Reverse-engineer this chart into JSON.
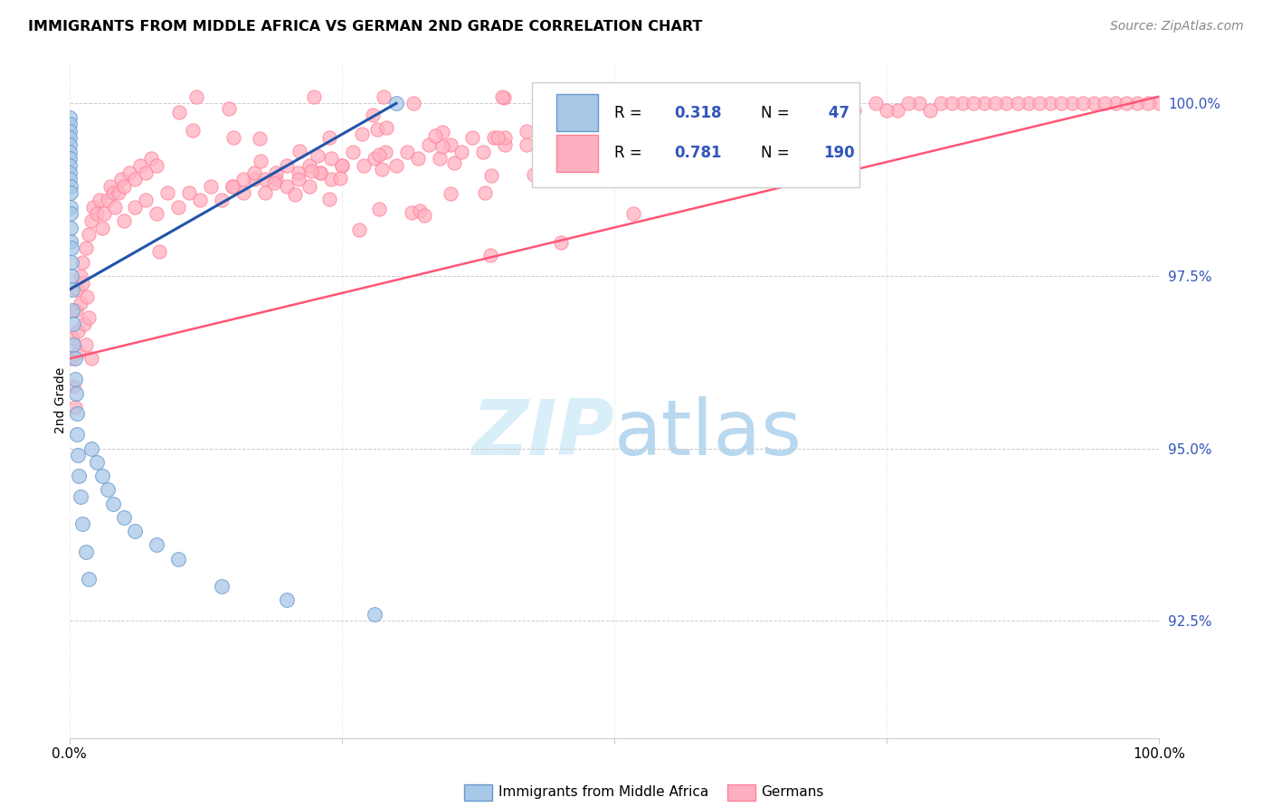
{
  "title": "IMMIGRANTS FROM MIDDLE AFRICA VS GERMAN 2ND GRADE CORRELATION CHART",
  "source": "Source: ZipAtlas.com",
  "ylabel": "2nd Grade",
  "ytick_labels": [
    "92.5%",
    "95.0%",
    "97.5%",
    "100.0%"
  ],
  "ytick_values": [
    0.925,
    0.95,
    0.975,
    1.0
  ],
  "xlim": [
    0.0,
    1.0
  ],
  "ylim": [
    0.908,
    1.006
  ],
  "legend_r1": "R = 0.318",
  "legend_n1": "N =  47",
  "legend_r2": "R = 0.781",
  "legend_n2": "N = 190",
  "blue_color": "#A8C8E8",
  "blue_edge_color": "#6699CC",
  "pink_color": "#FFB0C0",
  "pink_edge_color": "#FF8098",
  "blue_line_color": "#2255AA",
  "pink_line_color": "#FF5577",
  "watermark_color": "#D8EEF8",
  "background_color": "#FFFFFF",
  "grid_color": "#CCCCCC",
  "ytick_color": "#3355BB"
}
